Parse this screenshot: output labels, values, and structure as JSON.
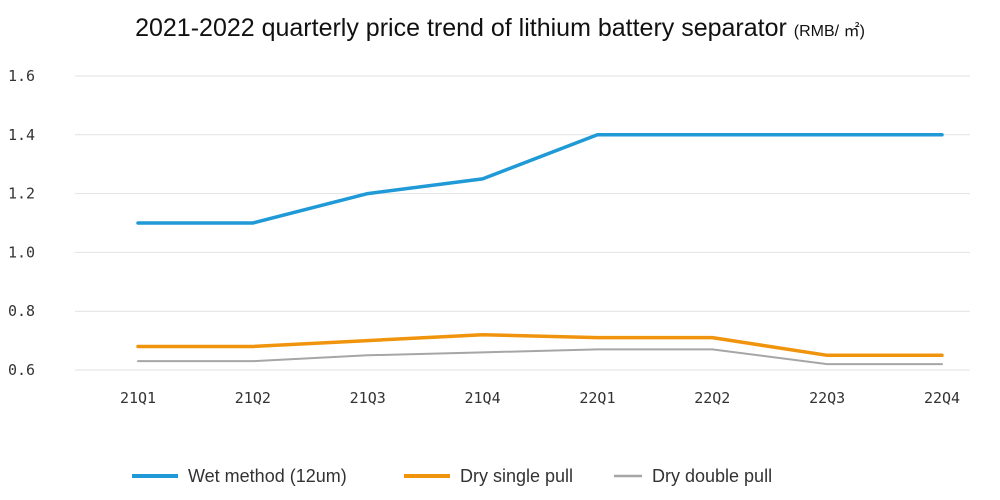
{
  "chart_data": {
    "type": "line",
    "title": "2021-2022 quarterly price trend of lithium battery separator",
    "title_unit": "(RMB/ ㎡)",
    "categories": [
      "21Q1",
      "21Q2",
      "21Q3",
      "21Q4",
      "22Q1",
      "22Q2",
      "22Q3",
      "22Q4"
    ],
    "y_ticks": [
      "0.6",
      "0.8",
      "1.0",
      "1.2",
      "1.4",
      "1.6"
    ],
    "ylim": [
      0.6,
      1.6
    ],
    "grid": true,
    "legend_position": "bottom",
    "series": [
      {
        "name": "Wet method (12um)",
        "color": "#1f9ad6",
        "values": [
          1.1,
          1.1,
          1.2,
          1.25,
          1.4,
          1.4,
          1.4,
          1.4
        ]
      },
      {
        "name": "Dry single pull",
        "color": "#f0940e",
        "values": [
          0.68,
          0.68,
          0.7,
          0.72,
          0.71,
          0.71,
          0.65,
          0.65
        ]
      },
      {
        "name": "Dry double pull",
        "color": "#a6a6a6",
        "values": [
          0.63,
          0.63,
          0.65,
          0.66,
          0.67,
          0.67,
          0.62,
          0.62
        ]
      }
    ]
  }
}
